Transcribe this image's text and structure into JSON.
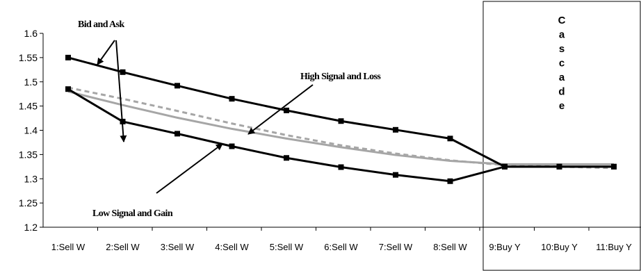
{
  "chart_data": {
    "type": "line",
    "categories": [
      "1:Sell W",
      "2:Sell W",
      "3:Sell W",
      "4:Sell W",
      "5:Sell W",
      "6:Sell W",
      "7:Sell W",
      "8:Sell W",
      "9:Buy Y",
      "10:Buy Y",
      "11:Buy Y"
    ],
    "ylim": [
      1.2,
      1.6
    ],
    "yticks": [
      "1.2",
      "1.25",
      "1.3",
      "1.35",
      "1.4",
      "1.45",
      "1.5",
      "1.55",
      "1.6"
    ],
    "grid": false,
    "series": [
      {
        "name": "",
        "style": "solid-black-square-markers",
        "color": "#000000",
        "values": [
          1.55,
          1.52,
          1.492,
          1.465,
          1.441,
          1.419,
          1.401,
          1.383,
          1.325,
          1.325,
          1.325
        ]
      },
      {
        "name": "",
        "style": "solid-black-square-markers",
        "color": "#000000",
        "values": [
          1.485,
          1.418,
          1.393,
          1.367,
          1.343,
          1.324,
          1.308,
          1.295,
          1.325,
          1.325,
          1.325
        ]
      },
      {
        "name": "",
        "style": "solid-gray",
        "color": "#a6a6a6",
        "values": [
          1.48,
          1.452,
          1.426,
          1.403,
          1.383,
          1.365,
          1.349,
          1.337,
          1.33,
          1.33,
          1.33
        ]
      },
      {
        "name": "",
        "style": "dashed-gray",
        "color": "#a6a6a6",
        "values": [
          1.488,
          1.465,
          1.44,
          1.414,
          1.39,
          1.369,
          1.352,
          1.338,
          1.328,
          1.325,
          1.322
        ]
      }
    ],
    "annotations": [
      "Bid and Ask",
      "High Signal and Loss",
      "Low Signal and Gain"
    ],
    "cascade_label": [
      "C",
      "a",
      "s",
      "c",
      "a",
      "d",
      "e"
    ]
  }
}
